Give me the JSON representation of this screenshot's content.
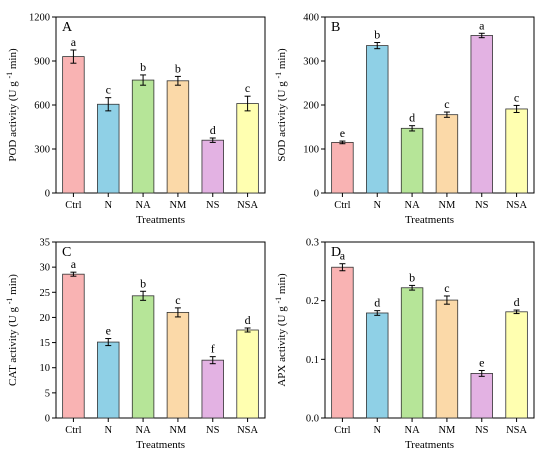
{
  "chart_data": [
    {
      "type": "bar",
      "panel_label": "A",
      "categories": [
        "Ctrl",
        "N",
        "NA",
        "NM",
        "NS",
        "NSA"
      ],
      "values": [
        930,
        605,
        770,
        765,
        360,
        610
      ],
      "errors": [
        45,
        45,
        35,
        30,
        15,
        50
      ],
      "letters": [
        "a",
        "c",
        "b",
        "b",
        "d",
        "c"
      ],
      "xlabel": "Treatments",
      "ylabel": "POD activity (U g⁻¹ min)",
      "ylim": [
        0,
        1200
      ],
      "yticks": [
        0,
        300,
        600,
        900,
        1200
      ]
    },
    {
      "type": "bar",
      "panel_label": "B",
      "categories": [
        "Ctrl",
        "N",
        "NA",
        "NM",
        "NS",
        "NSA"
      ],
      "values": [
        115,
        335,
        147,
        178,
        358,
        191
      ],
      "errors": [
        3,
        7,
        6,
        6,
        5,
        8
      ],
      "letters": [
        "e",
        "b",
        "d",
        "c",
        "a",
        "c"
      ],
      "xlabel": "Treatments",
      "ylabel": "SOD activity (U g⁻¹ min)",
      "ylim": [
        0,
        400
      ],
      "yticks": [
        0,
        100,
        200,
        300,
        400
      ]
    },
    {
      "type": "bar",
      "panel_label": "C",
      "categories": [
        "Ctrl",
        "N",
        "NA",
        "NM",
        "NS",
        "NSA"
      ],
      "values": [
        28.6,
        15.1,
        24.3,
        21.0,
        11.5,
        17.5
      ],
      "errors": [
        0.4,
        0.7,
        0.9,
        0.9,
        0.7,
        0.4
      ],
      "letters": [
        "a",
        "e",
        "b",
        "c",
        "f",
        "d"
      ],
      "xlabel": "Treatments",
      "ylabel": "CAT activity (U g⁻¹ min)",
      "ylim": [
        0,
        35
      ],
      "yticks": [
        0,
        5,
        10,
        15,
        20,
        25,
        30,
        35
      ]
    },
    {
      "type": "bar",
      "panel_label": "D",
      "categories": [
        "Ctrl",
        "N",
        "NA",
        "NM",
        "NS",
        "NSA"
      ],
      "values": [
        0.257,
        0.179,
        0.222,
        0.201,
        0.076,
        0.181
      ],
      "errors": [
        0.006,
        0.004,
        0.004,
        0.007,
        0.005,
        0.003
      ],
      "letters": [
        "a",
        "d",
        "b",
        "c",
        "e",
        "d"
      ],
      "xlabel": "Treatments",
      "ylabel": "APX activity (U g⁻¹ min)",
      "ylim": [
        0,
        0.3
      ],
      "yticks": [
        0.0,
        0.1,
        0.2,
        0.3
      ]
    }
  ],
  "colors": {
    "Ctrl": "#f9b3b3",
    "N": "#8fd0e6",
    "NA": "#b6e598",
    "NM": "#fbd9a8",
    "NS": "#e3b2e3",
    "NSA": "#ffffb0"
  }
}
